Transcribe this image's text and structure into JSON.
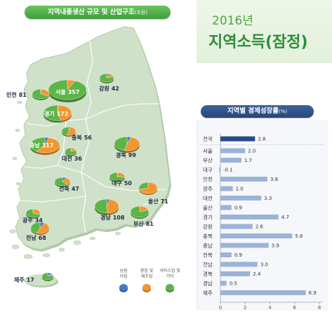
{
  "headline": {
    "year": "2016년",
    "title": "지역소득(잠정)"
  },
  "chart_data": [
    {
      "type": "pie",
      "title": "지역내총생산 규모 및 산업구조",
      "unit": "(조원)",
      "legend": "bottom",
      "series": [
        {
          "name_lines": [
            "농림",
            "어업"
          ],
          "color": "#3d7ec4"
        },
        {
          "name_lines": [
            "광업 및",
            "제조업"
          ],
          "color": "#f2962f"
        },
        {
          "name_lines": [
            "서비스업 및",
            "기타"
          ],
          "color": "#5db548"
        }
      ],
      "regions": [
        {
          "name": "서울",
          "value": 357,
          "shares": [
            0.0,
            0.07,
            0.93
          ]
        },
        {
          "name": "인천",
          "value": 81,
          "shares": [
            0.01,
            0.3,
            0.69
          ]
        },
        {
          "name": "경기",
          "value": 172,
          "shares": [
            0.01,
            0.45,
            0.54
          ]
        },
        {
          "name": "강원",
          "value": 42,
          "shares": [
            0.06,
            0.14,
            0.8
          ]
        },
        {
          "name": "충북",
          "value": 56,
          "shares": [
            0.04,
            0.5,
            0.46
          ]
        },
        {
          "name": "충남",
          "value": 117,
          "shares": [
            0.04,
            0.56,
            0.4
          ]
        },
        {
          "name": "대전",
          "value": 36,
          "shares": [
            0.0,
            0.2,
            0.8
          ]
        },
        {
          "name": "경북",
          "value": 99,
          "shares": [
            0.05,
            0.48,
            0.47
          ]
        },
        {
          "name": "대구",
          "value": 50,
          "shares": [
            0.01,
            0.25,
            0.74
          ]
        },
        {
          "name": "전북",
          "value": 47,
          "shares": [
            0.08,
            0.3,
            0.62
          ]
        },
        {
          "name": "울산",
          "value": 71,
          "shares": [
            0.0,
            0.7,
            0.3
          ]
        },
        {
          "name": "경남",
          "value": 108,
          "shares": [
            0.04,
            0.45,
            0.51
          ]
        },
        {
          "name": "부산",
          "value": 81,
          "shares": [
            0.0,
            0.2,
            0.8
          ]
        },
        {
          "name": "광주",
          "value": 34,
          "shares": [
            0.01,
            0.28,
            0.71
          ]
        },
        {
          "name": "전남",
          "value": 68,
          "shares": [
            0.08,
            0.48,
            0.44
          ]
        },
        {
          "name": "제주",
          "value": 17,
          "shares": [
            0.14,
            0.05,
            0.81
          ]
        }
      ]
    },
    {
      "type": "bar",
      "orientation": "horizontal",
      "title": "지역별 경제성장률",
      "unit": "(%)",
      "categories": [
        "전국",
        "서울",
        "부산",
        "대구",
        "인천",
        "광주",
        "대전",
        "울산",
        "경기",
        "강원",
        "충북",
        "충남",
        "전북",
        "전남",
        "경북",
        "경남",
        "제주"
      ],
      "values": [
        2.8,
        2.0,
        1.7,
        -0.1,
        3.8,
        1.0,
        3.3,
        0.9,
        4.7,
        2.6,
        5.8,
        3.9,
        0.9,
        3.0,
        2.4,
        0.5,
        6.9
      ],
      "xlim": [
        0,
        8
      ],
      "x_ticks": [
        0,
        2,
        4,
        6,
        8
      ],
      "grid": false,
      "highlight_index": 0,
      "colors": {
        "bar": "#9cb3d9",
        "highlight": "#294a86"
      }
    }
  ]
}
